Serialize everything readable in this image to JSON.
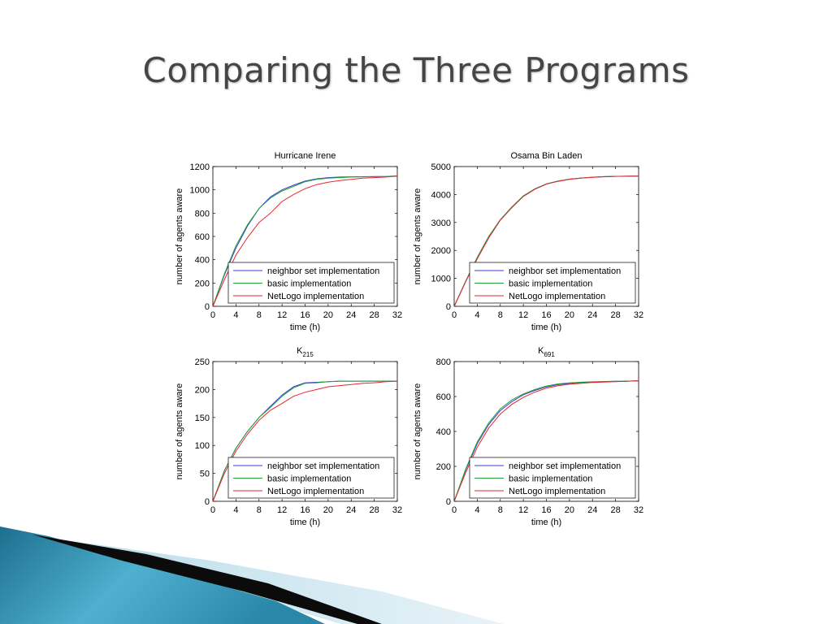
{
  "slide": {
    "title": "Comparing the Three Programs"
  },
  "colors": {
    "neighbor": "#3b3bd6",
    "basic": "#22a034",
    "netlogo": "#e6262c"
  },
  "chart_data": [
    {
      "type": "line",
      "title": "Hurricane Irene",
      "title_sub": "",
      "xlabel": "time (h)",
      "ylabel": "number of agents aware",
      "xlim": [
        0,
        32
      ],
      "ylim": [
        0,
        1200
      ],
      "xticks": [
        0,
        4,
        8,
        12,
        16,
        20,
        24,
        28,
        32
      ],
      "yticks": [
        0,
        200,
        400,
        600,
        800,
        1000,
        1200
      ],
      "legend_position": "lower-right",
      "x": [
        0,
        2,
        4,
        6,
        8,
        10,
        12,
        14,
        16,
        18,
        20,
        22,
        24,
        26,
        28,
        30,
        32
      ],
      "series": [
        {
          "name": "neighbor set implementation",
          "color_key": "neighbor",
          "values": [
            0,
            270,
            500,
            690,
            840,
            940,
            1000,
            1040,
            1075,
            1095,
            1105,
            1110,
            1112,
            1113,
            1114,
            1115,
            1120
          ]
        },
        {
          "name": "basic implementation",
          "color_key": "basic",
          "values": [
            0,
            280,
            520,
            700,
            840,
            930,
            990,
            1030,
            1070,
            1090,
            1100,
            1105,
            1110,
            1112,
            1113,
            1115,
            1120
          ]
        },
        {
          "name": "NetLogo implementation",
          "color_key": "netlogo",
          "values": [
            0,
            230,
            440,
            590,
            720,
            800,
            900,
            960,
            1010,
            1045,
            1065,
            1080,
            1090,
            1100,
            1105,
            1110,
            1118
          ]
        }
      ]
    },
    {
      "type": "line",
      "title": "Osama Bin Laden",
      "title_sub": "",
      "xlabel": "time (h)",
      "ylabel": "number of agents aware",
      "xlim": [
        0,
        32
      ],
      "ylim": [
        0,
        5000
      ],
      "xticks": [
        0,
        4,
        8,
        12,
        16,
        20,
        24,
        28,
        32
      ],
      "yticks": [
        0,
        1000,
        2000,
        3000,
        4000,
        5000
      ],
      "legend_position": "lower-right",
      "x": [
        0,
        2,
        4,
        6,
        8,
        10,
        12,
        14,
        16,
        18,
        20,
        22,
        24,
        26,
        28,
        30,
        32
      ],
      "series": [
        {
          "name": "neighbor set implementation",
          "color_key": "neighbor",
          "values": [
            0,
            900,
            1750,
            2500,
            3100,
            3550,
            3950,
            4200,
            4380,
            4480,
            4550,
            4590,
            4620,
            4640,
            4650,
            4655,
            4660
          ]
        },
        {
          "name": "basic implementation",
          "color_key": "basic",
          "values": [
            0,
            900,
            1750,
            2500,
            3100,
            3550,
            3950,
            4200,
            4380,
            4480,
            4550,
            4590,
            4620,
            4640,
            4650,
            4655,
            4660
          ]
        },
        {
          "name": "NetLogo implementation",
          "color_key": "netlogo",
          "values": [
            0,
            880,
            1700,
            2450,
            3080,
            3530,
            3930,
            4190,
            4370,
            4470,
            4545,
            4585,
            4615,
            4635,
            4648,
            4653,
            4660
          ]
        }
      ]
    },
    {
      "type": "line",
      "title": "K",
      "title_sub": "215",
      "xlabel": "time (h)",
      "ylabel": "number of agents aware",
      "xlim": [
        0,
        32
      ],
      "ylim": [
        0,
        250
      ],
      "xticks": [
        0,
        4,
        8,
        12,
        16,
        20,
        24,
        28,
        32
      ],
      "yticks": [
        0,
        50,
        100,
        150,
        200,
        250
      ],
      "legend_position": "lower-right",
      "x": [
        0,
        2,
        4,
        6,
        8,
        10,
        12,
        14,
        16,
        18,
        20,
        22,
        24,
        26,
        28,
        30,
        32
      ],
      "series": [
        {
          "name": "neighbor set implementation",
          "color_key": "neighbor",
          "values": [
            0,
            55,
            95,
            125,
            150,
            170,
            190,
            205,
            212,
            213,
            214,
            215,
            215,
            215,
            215,
            215,
            215
          ]
        },
        {
          "name": "basic implementation",
          "color_key": "basic",
          "values": [
            0,
            55,
            95,
            125,
            150,
            168,
            188,
            203,
            211,
            212,
            214,
            215,
            215,
            215,
            215,
            215,
            215
          ]
        },
        {
          "name": "NetLogo implementation",
          "color_key": "netlogo",
          "values": [
            0,
            50,
            90,
            120,
            145,
            163,
            175,
            188,
            195,
            200,
            205,
            207,
            209,
            211,
            212,
            214,
            215
          ]
        }
      ]
    },
    {
      "type": "line",
      "title": "K",
      "title_sub": "691",
      "xlabel": "time (h)",
      "ylabel": "number of agents aware",
      "xlim": [
        0,
        32
      ],
      "ylim": [
        0,
        800
      ],
      "xticks": [
        0,
        4,
        8,
        12,
        16,
        20,
        24,
        28,
        32
      ],
      "yticks": [
        0,
        200,
        400,
        600,
        800
      ],
      "legend_position": "lower-right",
      "x": [
        0,
        2,
        4,
        6,
        8,
        10,
        12,
        14,
        16,
        18,
        20,
        22,
        24,
        26,
        28,
        30,
        32
      ],
      "series": [
        {
          "name": "neighbor set implementation",
          "color_key": "neighbor",
          "values": [
            0,
            180,
            330,
            440,
            520,
            570,
            610,
            635,
            655,
            668,
            675,
            680,
            683,
            685,
            687,
            688,
            690
          ]
        },
        {
          "name": "basic implementation",
          "color_key": "basic",
          "values": [
            0,
            185,
            340,
            450,
            530,
            580,
            615,
            640,
            660,
            672,
            678,
            682,
            684,
            686,
            687,
            688,
            690
          ]
        },
        {
          "name": "NetLogo implementation",
          "color_key": "netlogo",
          "values": [
            0,
            165,
            310,
            420,
            500,
            555,
            595,
            625,
            648,
            662,
            670,
            676,
            680,
            683,
            685,
            687,
            690
          ]
        }
      ]
    }
  ]
}
